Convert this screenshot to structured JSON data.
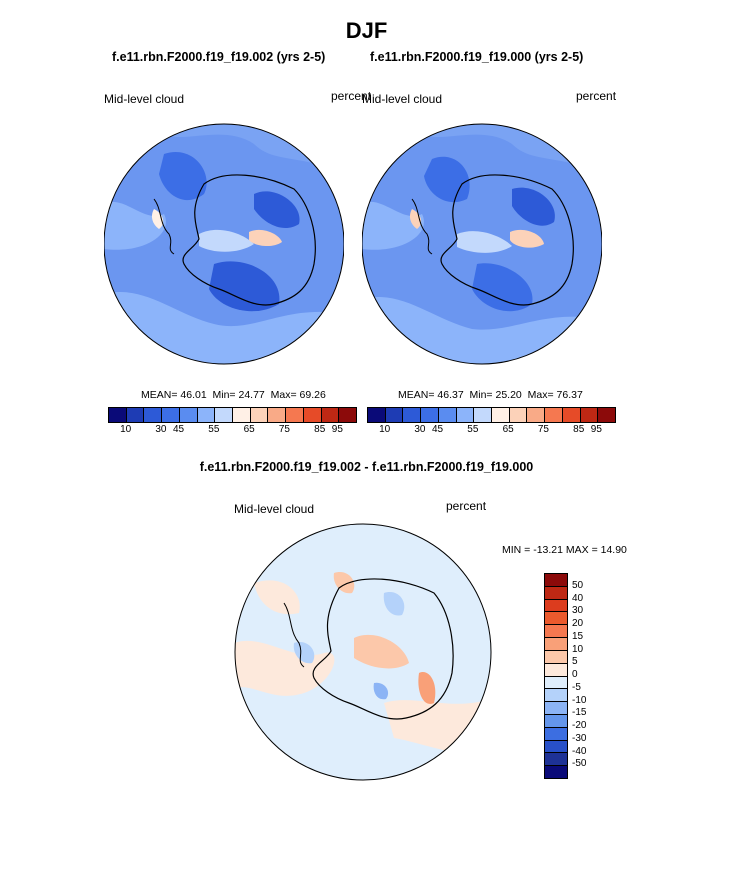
{
  "title": "DJF",
  "panel_left": {
    "case": "f.e11.rbn.F2000.f19_f19.002 (yrs 2-5)",
    "field": "Mid-level cloud",
    "units": "percent",
    "stats": {
      "mean_label": "MEAN=",
      "mean": "46.01",
      "min_label": "Min=",
      "min": "24.77",
      "max_label": "Max=",
      "max": "69.26"
    }
  },
  "panel_right": {
    "case": "f.e11.rbn.F2000.f19_f19.000 (yrs 2-5)",
    "field": "Mid-level cloud",
    "units": "percent",
    "stats": {
      "mean_label": "MEAN=",
      "mean": "46.37",
      "min_label": "Min=",
      "min": "25.20",
      "max_label": "Max=",
      "max": "76.37"
    }
  },
  "colorbar_abs": {
    "colors": [
      "#0a0a78",
      "#1e3cb4",
      "#2d5ad7",
      "#3c6ee6",
      "#5a8cf0",
      "#8cb4fa",
      "#c3d9fc",
      "#fff0e6",
      "#fcd2b9",
      "#f9aa87",
      "#f57850",
      "#e64b28",
      "#be2814",
      "#8c0a0a"
    ],
    "labels": [
      "10",
      "30",
      "45",
      "55",
      "65",
      "75",
      "85",
      "95"
    ]
  },
  "diff": {
    "title": "f.e11.rbn.F2000.f19_f19.002 - f.e11.rbn.F2000.f19_f19.000",
    "field": "Mid-level cloud",
    "units": "percent",
    "minmax": "MIN = -13.21 MAX =  14.90"
  },
  "colorbar_diff": {
    "colors": [
      "#8c0a0a",
      "#be2814",
      "#dc3c1e",
      "#eb5a2d",
      "#f57850",
      "#f9a078",
      "#fcc8aa",
      "#fde9dc",
      "#dfeefc",
      "#b4d2fa",
      "#8cb4f5",
      "#6496eb",
      "#3c6ee1",
      "#2850c8",
      "#1e3296",
      "#0a0a78"
    ],
    "labels": [
      "50",
      "40",
      "30",
      "20",
      "15",
      "10",
      "5",
      "0",
      "-5",
      "-10",
      "-15",
      "-20",
      "-30",
      "-40",
      "-50"
    ]
  }
}
